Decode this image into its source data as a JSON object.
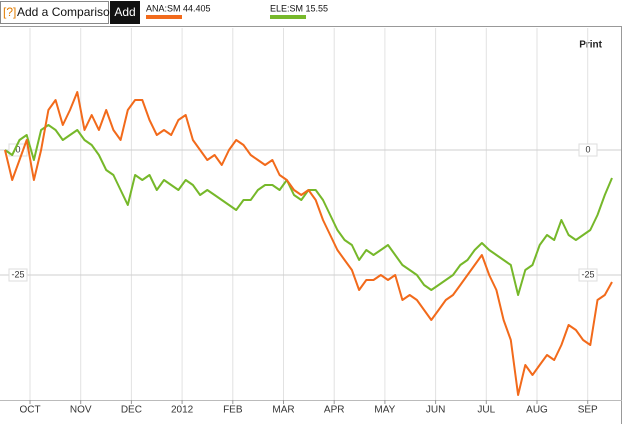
{
  "ui": {
    "help": "[?]",
    "compare_placeholder": "Add a Comparison",
    "add_button": "Add",
    "print": "Print"
  },
  "chart_data": {
    "type": "line",
    "xticks": [
      "OCT",
      "NOV",
      "DEC",
      "2012",
      "FEB",
      "MAR",
      "APR",
      "MAY",
      "JUN",
      "JUL",
      "AUG",
      "SEP"
    ],
    "ylim": [
      -50,
      24.4
    ],
    "yticks": [
      0,
      -25
    ],
    "grid": true,
    "series": [
      {
        "name": "ANA:SM 44.405",
        "color": "#f26a1b",
        "values": [
          0,
          -6,
          -2,
          2,
          -6,
          0,
          8,
          10,
          5,
          8,
          11.6,
          4,
          7,
          4,
          8,
          4,
          2,
          8,
          10,
          10,
          6,
          3,
          4,
          3,
          6,
          7,
          2,
          0,
          -2,
          -1,
          -3,
          0,
          2,
          1,
          -1,
          -2,
          -3,
          -2,
          -5,
          -6,
          -8,
          -9,
          -8,
          -10,
          -14,
          -17,
          -20,
          -22,
          -24,
          -28,
          -26,
          -26,
          -25,
          -26,
          -25,
          -30,
          -29,
          -30,
          -32,
          -34,
          -32,
          -30,
          -29,
          -27,
          -25,
          -23,
          -21,
          -25,
          -28,
          -34,
          -38,
          -49,
          -43,
          -45,
          -43,
          -41,
          -42,
          -39,
          -35,
          -36,
          -38,
          -39,
          -30,
          -29,
          -26.4
        ]
      },
      {
        "name": "ELE:SM 15.55",
        "color": "#76b82a",
        "values": [
          0,
          -1,
          2,
          3,
          -2,
          4,
          5,
          4,
          2,
          3,
          4,
          2,
          1,
          -1,
          -4,
          -5,
          -8,
          -11,
          -5,
          -6,
          -5,
          -8,
          -6,
          -7,
          -8,
          -6,
          -7,
          -9,
          -8,
          -9,
          -10,
          -11,
          -12,
          -10,
          -10,
          -8,
          -7,
          -7,
          -8,
          -6,
          -9,
          -10,
          -8,
          -8,
          -10,
          -13,
          -16,
          -18,
          -19,
          -22,
          -20,
          -21,
          -20,
          -19,
          -21,
          -23,
          -24,
          -25,
          -27,
          -28,
          -27,
          -26,
          -25,
          -23,
          -22,
          -20,
          -18.6,
          -20,
          -21,
          -22,
          -23,
          -29,
          -24,
          -23,
          -19,
          -17,
          -18,
          -14,
          -17,
          -18,
          -17,
          -16,
          -13,
          -9,
          -5.6
        ]
      }
    ]
  }
}
